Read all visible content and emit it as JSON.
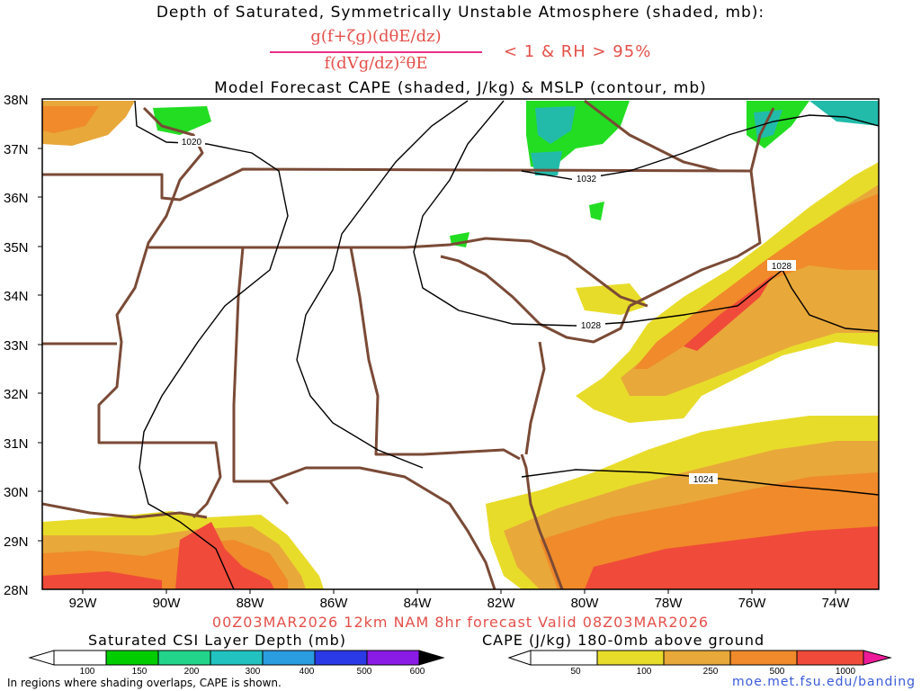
{
  "header": {
    "title_line1": "Depth of Saturated, Symmetrically Unstable Atmosphere (shaded, mb):",
    "formula_numerator": "g(f+ζg)(dθE/dz)",
    "formula_denominator": "f(dVg/dz)²θE",
    "condition": "< 1 & RH > 95%",
    "title_line3": "Model Forecast CAPE (shaded, J/kg) & MSLP (contour, mb)"
  },
  "map": {
    "lat_labels": [
      "38N",
      "37N",
      "36N",
      "35N",
      "34N",
      "33N",
      "32N",
      "31N",
      "30N",
      "29N",
      "28N"
    ],
    "lon_labels": [
      "92W",
      "90W",
      "88W",
      "86W",
      "84W",
      "82W",
      "80W",
      "78W",
      "76W",
      "74W"
    ],
    "isobar_labels": [
      "1020",
      "1032",
      "1028",
      "1028",
      "1024"
    ],
    "colors": {
      "state_lines": "#7a4a36",
      "isobars": "#000000",
      "csi_green": "#22dd22",
      "csi_teal": "#22bbaa"
    }
  },
  "run_info": "00Z03MAR2026 12km NAM 8hr forecast Valid 08Z03MAR2026",
  "legend_csi": {
    "title": "Saturated CSI Layer Depth (mb)",
    "ticks": [
      "100",
      "150",
      "200",
      "300",
      "400",
      "500",
      "600"
    ],
    "colors": [
      "#ffffff",
      "#00cc00",
      "#22d48a",
      "#22c2c0",
      "#2a9ce0",
      "#2a3ae6",
      "#8a1ae6",
      "#000000"
    ]
  },
  "legend_cape": {
    "title": "CAPE (J/kg) 180-0mb above ground",
    "ticks": [
      "50",
      "100",
      "250",
      "500",
      "1000"
    ],
    "colors": [
      "#ffffff",
      "#e8dc2a",
      "#e8a83a",
      "#f08a2a",
      "#f04a3a",
      "#ee1a9a"
    ]
  },
  "footnote": "In regions where shading overlaps, CAPE is shown.",
  "source_link": "moe.met.fsu.edu/banding"
}
